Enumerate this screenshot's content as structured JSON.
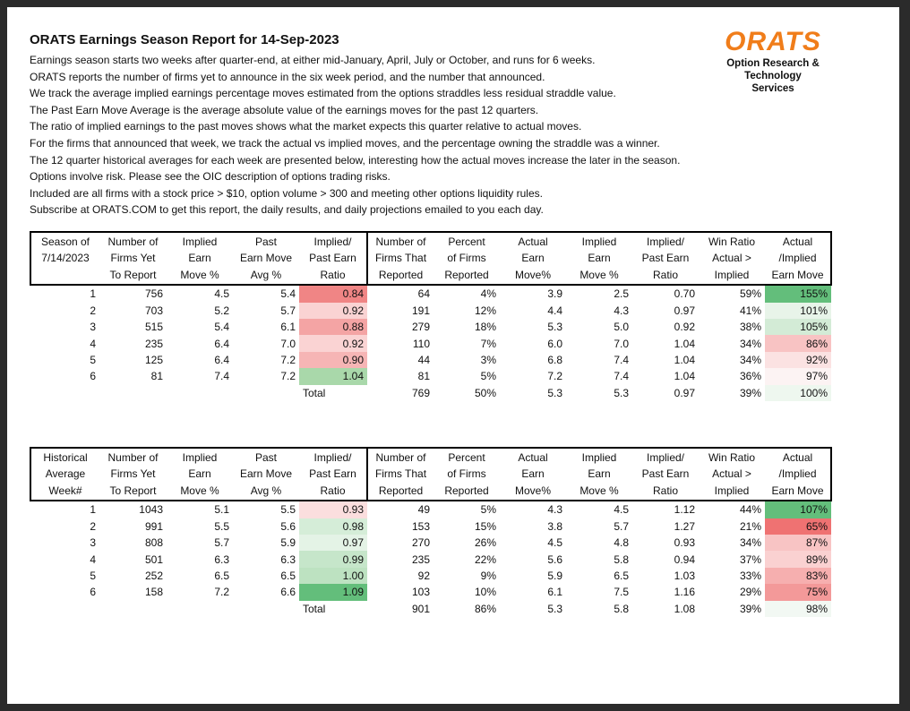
{
  "header": {
    "title": "ORATS Earnings Season Report for 14-Sep-2023",
    "lines": [
      "Earnings season starts two weeks after quarter-end, at either mid-January, April, July or October, and runs for 6 weeks.",
      "ORATS reports the number of firms yet to announce in the six week period, and the number that announced.",
      "We track the average implied earnings percentage moves estimated from the options straddles less residual straddle value.",
      "The Past Earn Move Average is the average absolute value of the earnings moves for the past 12 quarters.",
      "The ratio of implied earnings to the past moves shows what the market expects this quarter relative to actual moves.",
      "For the firms that announced that week, we track the actual vs implied moves, and the percentage owning the straddle was a winner.",
      "The 12 quarter historical averages for each week are presented below, interesting how the actual moves increase the later in the season.",
      "Options involve risk. Please see the OIC description of options trading risks.",
      "Included are all firms with a stock price > $10, option volume > 300 and meeting other options liquidity rules.",
      "Subscribe at ORATS.COM to get this report, the daily results, and daily projections emailed to you each day."
    ]
  },
  "logo": {
    "name": "ORATS",
    "tagline": [
      "Option Research &",
      "Technology Services"
    ]
  },
  "tables": [
    {
      "headers": [
        [
          "Season of",
          "7/14/2023"
        ],
        [
          "Number of",
          "Firms Yet",
          "To Report"
        ],
        [
          "Implied",
          "Earn",
          "Move %"
        ],
        [
          "Past",
          "Earn Move",
          "Avg %"
        ],
        [
          "Implied/",
          "Past Earn",
          "Ratio"
        ],
        [
          "Number of",
          "Firms That",
          "Reported"
        ],
        [
          "Percent",
          "of Firms",
          "Reported"
        ],
        [
          "Actual",
          "Earn",
          "Move%"
        ],
        [
          "Implied",
          "Earn",
          "Move %"
        ],
        [
          "Implied/",
          "Past Earn",
          "Ratio"
        ],
        [
          "Win Ratio",
          "Actual >",
          "Implied"
        ],
        [
          "Actual",
          "/Implied",
          "Earn Move"
        ]
      ],
      "rows": [
        [
          "1",
          "756",
          "4.5",
          "5.4",
          "0.84",
          "64",
          "4%",
          "3.9",
          "2.5",
          "0.70",
          "59%",
          "155%"
        ],
        [
          "2",
          "703",
          "5.2",
          "5.7",
          "0.92",
          "191",
          "12%",
          "4.4",
          "4.3",
          "0.97",
          "41%",
          "101%"
        ],
        [
          "3",
          "515",
          "5.4",
          "6.1",
          "0.88",
          "279",
          "18%",
          "5.3",
          "5.0",
          "0.92",
          "38%",
          "105%"
        ],
        [
          "4",
          "235",
          "6.4",
          "7.0",
          "0.92",
          "110",
          "7%",
          "6.0",
          "7.0",
          "1.04",
          "34%",
          "86%"
        ],
        [
          "5",
          "125",
          "6.4",
          "7.2",
          "0.90",
          "44",
          "3%",
          "6.8",
          "7.4",
          "1.04",
          "34%",
          "92%"
        ],
        [
          "6",
          "81",
          "7.4",
          "7.2",
          "1.04",
          "81",
          "5%",
          "7.2",
          "7.4",
          "1.04",
          "36%",
          "97%"
        ]
      ],
      "total": {
        "label": "Total",
        "values": [
          "769",
          "50%",
          "5.3",
          "5.3",
          "0.97",
          "39%",
          "100%"
        ]
      }
    },
    {
      "headers": [
        [
          "Historical",
          "Average",
          "Week#"
        ],
        [
          "Number of",
          "Firms Yet",
          "To Report"
        ],
        [
          "Implied",
          "Earn",
          "Move %"
        ],
        [
          "Past",
          "Earn Move",
          "Avg %"
        ],
        [
          "Implied/",
          "Past Earn",
          "Ratio"
        ],
        [
          "Number of",
          "Firms That",
          "Reported"
        ],
        [
          "Percent",
          "of Firms",
          "Reported"
        ],
        [
          "Actual",
          "Earn",
          "Move%"
        ],
        [
          "Implied",
          "Earn",
          "Move %"
        ],
        [
          "Implied/",
          "Past Earn",
          "Ratio"
        ],
        [
          "Win Ratio",
          "Actual >",
          "Implied"
        ],
        [
          "Actual",
          "/Implied",
          "Earn Move"
        ]
      ],
      "rows": [
        [
          "1",
          "1043",
          "5.1",
          "5.5",
          "0.93",
          "49",
          "5%",
          "4.3",
          "4.5",
          "1.12",
          "44%",
          "107%"
        ],
        [
          "2",
          "991",
          "5.5",
          "5.6",
          "0.98",
          "153",
          "15%",
          "3.8",
          "5.7",
          "1.27",
          "21%",
          "65%"
        ],
        [
          "3",
          "808",
          "5.7",
          "5.9",
          "0.97",
          "270",
          "26%",
          "4.5",
          "4.8",
          "0.93",
          "34%",
          "87%"
        ],
        [
          "4",
          "501",
          "6.3",
          "6.3",
          "0.99",
          "235",
          "22%",
          "5.6",
          "5.8",
          "0.94",
          "37%",
          "89%"
        ],
        [
          "5",
          "252",
          "6.5",
          "6.5",
          "1.00",
          "92",
          "9%",
          "5.9",
          "6.5",
          "1.03",
          "33%",
          "83%"
        ],
        [
          "6",
          "158",
          "7.2",
          "6.6",
          "1.09",
          "103",
          "10%",
          "6.1",
          "7.5",
          "1.16",
          "29%",
          "75%"
        ]
      ],
      "total": {
        "label": "Total",
        "values": [
          "901",
          "86%",
          "5.3",
          "5.8",
          "1.08",
          "39%",
          "98%"
        ]
      }
    }
  ]
}
